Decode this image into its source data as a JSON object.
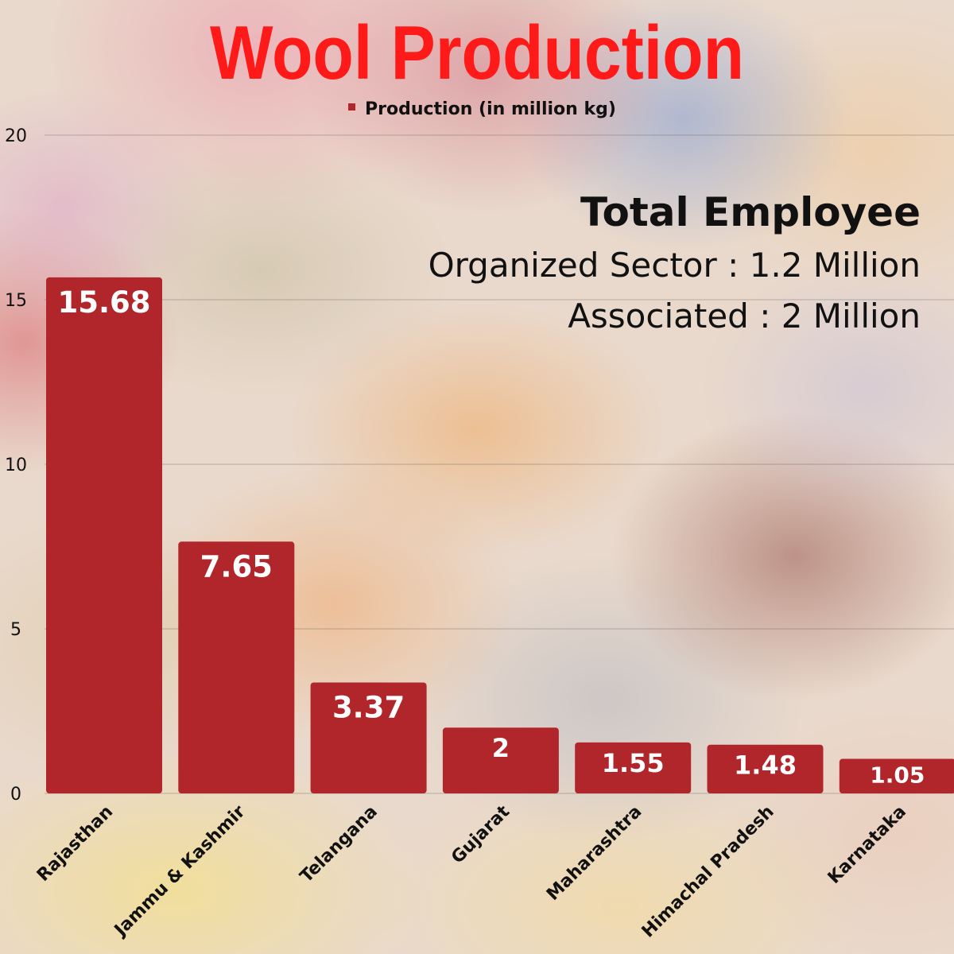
{
  "colors": {
    "title": "#ff1a1a",
    "bar": "#b1262a",
    "text": "#111111",
    "bar_label": "#ffffff"
  },
  "employee_panel": {
    "heading": "Total Employee",
    "lines": [
      "Organized Sector : 1.2 Million",
      "Associated : 2 Million"
    ]
  },
  "chart_data": {
    "type": "bar",
    "title": "Wool Production",
    "xlabel": "",
    "ylabel": "",
    "ylim": [
      0,
      20
    ],
    "yticks": [
      0,
      5,
      10,
      15,
      20
    ],
    "grid": true,
    "legend": "top-center",
    "categories": [
      "Rajasthan",
      "Jammu & Kashmir",
      "Telangana",
      "Gujarat",
      "Maharashtra",
      "Himachal Pradesh",
      "Karnataka"
    ],
    "series": [
      {
        "name": "Production (in million kg)",
        "values": [
          15.68,
          7.65,
          3.37,
          2,
          1.55,
          1.48,
          1.05
        ]
      }
    ]
  }
}
